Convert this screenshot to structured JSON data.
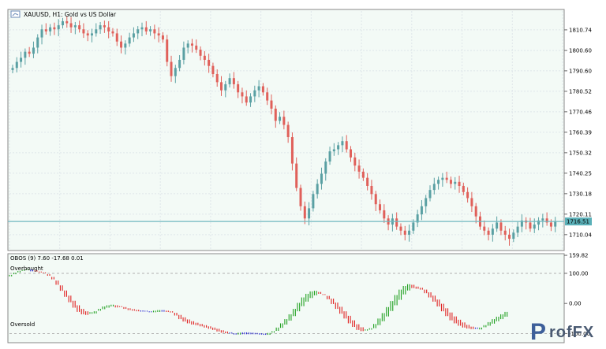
{
  "chart_data": [
    {
      "type": "candlestick",
      "title": "XAUUSD, H1:  Gold vs US Dollar",
      "ylim": [
        1703.0,
        1820.0
      ],
      "yticks": [
        "1810.74",
        "1800.60",
        "1790.60",
        "1780.52",
        "1770.46",
        "1760.39",
        "1750.32",
        "1740.25",
        "1730.18",
        "1720.11",
        "1710.04"
      ],
      "current_price": "1716.51",
      "colors": {
        "bull": "#5aa0a3",
        "bear": "#e0605a",
        "grid": "#dfe6ea",
        "bg": "#f3faf6",
        "price_line": "#70b8c0",
        "price_tag": "#5ab0b8"
      },
      "close": [
        1792,
        1795,
        1797,
        1800,
        1799,
        1802,
        1807,
        1811,
        1810,
        1812,
        1811,
        1813,
        1815,
        1814,
        1812,
        1813,
        1811,
        1809,
        1808,
        1809,
        1811,
        1813,
        1812,
        1810,
        1809,
        1805,
        1802,
        1804,
        1807,
        1809,
        1811,
        1812,
        1810,
        1811,
        1809,
        1808,
        1806,
        1795,
        1788,
        1792,
        1796,
        1802,
        1804,
        1803,
        1801,
        1798,
        1796,
        1793,
        1789,
        1785,
        1781,
        1784,
        1787,
        1784,
        1780,
        1778,
        1775,
        1778,
        1781,
        1783,
        1780,
        1776,
        1772,
        1766,
        1768,
        1764,
        1758,
        1745,
        1733,
        1724,
        1718,
        1723,
        1730,
        1735,
        1740,
        1746,
        1751,
        1752,
        1754,
        1756,
        1752,
        1748,
        1744,
        1741,
        1738,
        1734,
        1730,
        1725,
        1722,
        1718,
        1715,
        1718,
        1714,
        1712,
        1710,
        1712,
        1716,
        1720,
        1724,
        1728,
        1732,
        1735,
        1737,
        1738,
        1737,
        1735,
        1736,
        1734,
        1731,
        1728,
        1724,
        1719,
        1714,
        1712,
        1710,
        1713,
        1716,
        1712,
        1710,
        1708,
        1711,
        1714,
        1717,
        1716,
        1713,
        1715,
        1717,
        1718,
        1716,
        1714,
        1716.51
      ],
      "obos": {
        "label": "OBOS (9) 7.60 -17.68 0.01",
        "ylim": [
          -125,
          160
        ],
        "yticks": [
          "159.82",
          "100.00",
          "0.00",
          "-100.00"
        ],
        "overbought_label": "Overbought",
        "oversold_label": "Oversold",
        "colors": {
          "down": "#e02020",
          "up": "#20a020",
          "neutral": "#2020d0"
        },
        "main": [
          95,
          102,
          108,
          112,
          114,
          113,
          110,
          106,
          100,
          92,
          80,
          62,
          42,
          22,
          4,
          -14,
          -28,
          -36,
          -38,
          -34,
          -26,
          -18,
          -10,
          -6,
          -4,
          -6,
          -12,
          -18,
          -22,
          -24,
          -26,
          -27,
          -27,
          -26,
          -24,
          -22,
          -22,
          -24,
          -30,
          -40,
          -52,
          -60,
          -66,
          -70,
          -72,
          -76,
          -80,
          -84,
          -88,
          -93,
          -97,
          -99,
          -100,
          -99,
          -97,
          -96,
          -96,
          -97,
          -98,
          -99,
          -100,
          -98,
          -92,
          -80,
          -66,
          -52,
          -36,
          -18,
          2,
          20,
          32,
          40,
          42,
          38,
          28,
          14,
          -2,
          -18,
          -34,
          -50,
          -66,
          -78,
          -88,
          -92,
          -90,
          -82,
          -68,
          -50,
          -32,
          -12,
          8,
          28,
          46,
          58,
          64,
          62,
          56,
          46,
          34,
          20,
          6,
          -10,
          -26,
          -42,
          -56,
          -66,
          -74,
          -80,
          -83,
          -85,
          -84,
          -80,
          -72,
          -62,
          -52,
          -44,
          -36,
          -28
        ],
        "signal": [
          90,
          97,
          103,
          108,
          111,
          112,
          111,
          108,
          103,
          97,
          88,
          76,
          60,
          43,
          26,
          9,
          -6,
          -18,
          -26,
          -29,
          -28,
          -24,
          -19,
          -14,
          -10,
          -8,
          -9,
          -12,
          -16,
          -19,
          -21,
          -23,
          -24,
          -24,
          -24,
          -23,
          -22,
          -23,
          -26,
          -31,
          -38,
          -46,
          -53,
          -59,
          -64,
          -68,
          -72,
          -76,
          -80,
          -84,
          -89,
          -93,
          -96,
          -98,
          -98,
          -97,
          -97,
          -97,
          -97,
          -98,
          -99,
          -99,
          -97,
          -91,
          -81,
          -70,
          -57,
          -42,
          -26,
          -9,
          6,
          18,
          27,
          32,
          31,
          25,
          16,
          3,
          -11,
          -26,
          -41,
          -56,
          -69,
          -79,
          -86,
          -87,
          -82,
          -72,
          -59,
          -43,
          -25,
          -6,
          12,
          30,
          43,
          51,
          54,
          52,
          46,
          37,
          26,
          13,
          -1,
          -16,
          -30,
          -43,
          -54,
          -63,
          -71,
          -77,
          -80,
          -81,
          -79,
          -74,
          -67,
          -59,
          -52,
          -44
        ]
      }
    }
  ]
}
